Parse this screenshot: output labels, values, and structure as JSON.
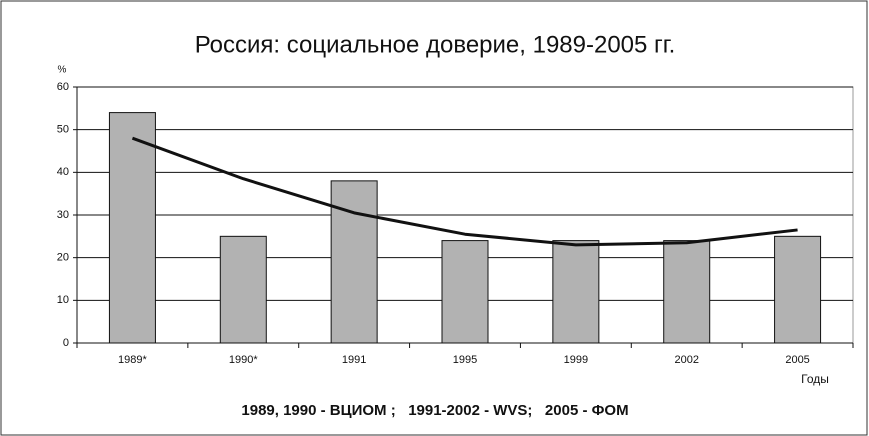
{
  "chart_data": {
    "type": "bar",
    "title": "Россия: социальное доверие, 1989-2005 гг.",
    "y_label": "%",
    "x_label": "Годы",
    "note": "1989, 1990 - ВЦИОМ ;   1991-2002 - WVS;   2005 - ФОМ",
    "categories": [
      "1989*",
      "1990*",
      "1991",
      "1995",
      "1999",
      "2002",
      "2005"
    ],
    "values": [
      54,
      25,
      38,
      24,
      24,
      24,
      25
    ],
    "color": "#b2b2b2",
    "trend": {
      "values": [
        48,
        38.5,
        30.5,
        25.5,
        23,
        23.5,
        26.5
      ],
      "color": "#111111"
    },
    "ylim": [
      0,
      60
    ],
    "yticks": [
      0,
      10,
      20,
      30,
      40,
      50,
      60
    ],
    "grid": true
  }
}
